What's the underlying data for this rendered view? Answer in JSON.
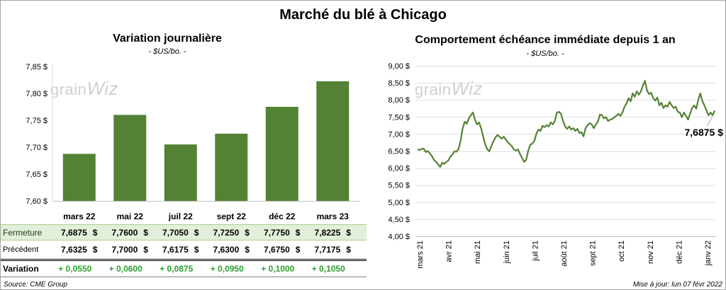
{
  "title": "Marché du blé à Chicago",
  "logo": {
    "part1": "grain",
    "part2": "Wiz"
  },
  "colors": {
    "bar": "#548235",
    "line": "#548235",
    "variation": "#2e9e2e",
    "highlight": "#e2efda"
  },
  "chart_data": [
    {
      "type": "bar",
      "title": "Variation journalière",
      "subtitle": "- $US/bo. -",
      "categories": [
        "mars 22",
        "mai 22",
        "juil 22",
        "sept 22",
        "déc 22",
        "mars 23"
      ],
      "values": [
        7.6875,
        7.76,
        7.705,
        7.725,
        7.775,
        7.8225
      ],
      "ylim": [
        7.6,
        7.85
      ],
      "yticks": [
        {
          "value": 7.6,
          "label": "7,60 $"
        },
        {
          "value": 7.65,
          "label": "7,65 $"
        },
        {
          "value": 7.7,
          "label": "7,70 $"
        },
        {
          "value": 7.75,
          "label": "7,75 $"
        },
        {
          "value": 7.8,
          "label": "7,80 $"
        },
        {
          "value": 7.85,
          "label": "7,85 $"
        }
      ],
      "grid": false
    },
    {
      "type": "line",
      "title": "Comportement échéance immédiate depuis 1 an",
      "subtitle": "- $US/bo. -",
      "x_tick_labels": [
        "mars 21",
        "avr 21",
        "mai 21",
        "juin 21",
        "juil 21",
        "août 21",
        "sept 21",
        "oct 21",
        "nov 21",
        "déc 21",
        "janv 22"
      ],
      "series": [
        {
          "values": [
            6.55,
            6.53,
            6.56,
            6.57,
            6.47,
            6.5,
            6.43,
            6.35,
            6.24,
            6.18,
            6.12,
            6.03,
            6.16,
            6.12,
            6.18,
            6.22,
            6.33,
            6.4,
            6.49,
            6.48,
            6.56,
            6.8,
            7.17,
            7.36,
            7.3,
            7.46,
            7.55,
            7.63,
            7.42,
            7.28,
            7.34,
            7.17,
            6.93,
            6.7,
            6.55,
            6.49,
            6.64,
            6.78,
            6.9,
            6.97,
            6.92,
            6.86,
            6.92,
            6.84,
            6.76,
            6.7,
            6.64,
            6.55,
            6.51,
            6.55,
            6.41,
            6.3,
            6.18,
            6.24,
            6.51,
            6.68,
            6.72,
            6.8,
            7.01,
            7.13,
            7.09,
            7.24,
            7.2,
            7.26,
            7.22,
            7.34,
            7.28,
            7.38,
            7.63,
            7.65,
            7.59,
            7.38,
            7.22,
            7.15,
            7.22,
            7.13,
            7.17,
            7.09,
            7.15,
            7.03,
            7.05,
            6.93,
            7.17,
            7.26,
            7.32,
            7.28,
            7.17,
            7.28,
            7.36,
            7.57,
            7.55,
            7.46,
            7.49,
            7.38,
            7.42,
            7.44,
            7.49,
            7.53,
            7.59,
            7.53,
            7.63,
            7.8,
            7.9,
            8.05,
            7.96,
            8.19,
            8.09,
            8.25,
            8.15,
            8.25,
            8.42,
            8.56,
            8.27,
            8.17,
            8.21,
            8.05,
            7.98,
            8.07,
            7.84,
            7.92,
            7.76,
            7.84,
            7.8,
            7.94,
            7.84,
            7.76,
            7.8,
            7.65,
            7.63,
            7.49,
            7.63,
            7.53,
            7.42,
            7.59,
            7.76,
            7.84,
            7.74,
            8.0,
            8.19,
            7.96,
            7.84,
            7.69,
            7.55,
            7.63,
            7.55,
            7.6875
          ]
        }
      ],
      "ylim": [
        4.0,
        9.0
      ],
      "yticks": [
        {
          "value": 4.0,
          "label": "4,00 $"
        },
        {
          "value": 4.5,
          "label": "4,50 $"
        },
        {
          "value": 5.0,
          "label": "5,00 $"
        },
        {
          "value": 5.5,
          "label": "5,50 $"
        },
        {
          "value": 6.0,
          "label": "6,00 $"
        },
        {
          "value": 6.5,
          "label": "6,50 $"
        },
        {
          "value": 7.0,
          "label": "7,00 $"
        },
        {
          "value": 7.5,
          "label": "7,50 $"
        },
        {
          "value": 8.0,
          "label": "8,00 $"
        },
        {
          "value": 8.5,
          "label": "8,50 $"
        },
        {
          "value": 9.0,
          "label": "9,00 $"
        }
      ],
      "grid": true,
      "last_value_label": "7,6875 $"
    }
  ],
  "table": {
    "currency": "$",
    "rows": [
      {
        "label": "Fermeture",
        "values": [
          "7,6875",
          "7,7600",
          "7,7050",
          "7,7250",
          "7,7750",
          "7,8225"
        ]
      },
      {
        "label": "Précédent",
        "values": [
          "7,6325",
          "7,7000",
          "7,6175",
          "7,6300",
          "7,6750",
          "7,7175"
        ]
      },
      {
        "label": "Variation",
        "values": [
          "+ 0,0550",
          "+ 0,0600",
          "+ 0,0875",
          "+ 0,0950",
          "+ 0,1000",
          "+ 0,1050"
        ]
      }
    ]
  },
  "source": "Source: CME Group",
  "updated": "Mise à jour: lun 07 févr 2022"
}
